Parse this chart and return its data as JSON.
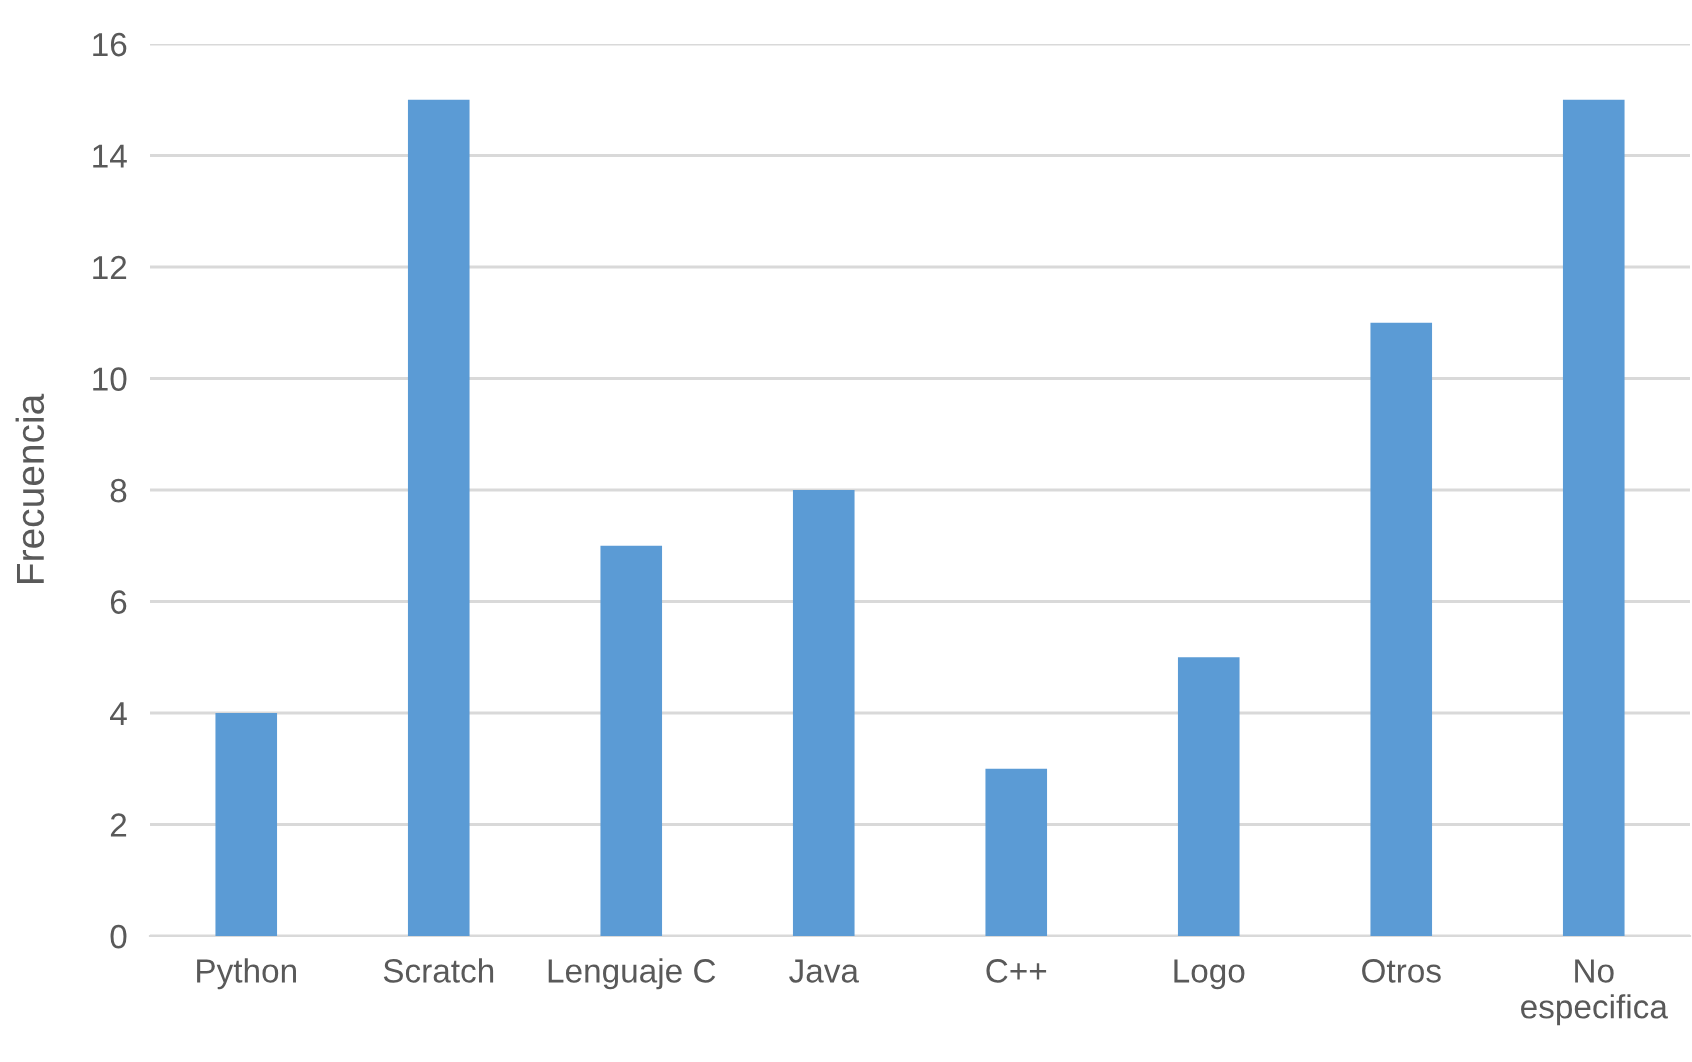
{
  "chart_data": {
    "type": "bar",
    "ylabel": "Frecuencia",
    "categories": [
      "Python",
      "Scratch",
      "Lenguaje C",
      "Java",
      "C++",
      "Logo",
      "Otros",
      "No\nespecifica"
    ],
    "values": [
      4,
      15,
      7,
      8,
      3,
      5,
      11,
      15
    ],
    "color": "#5b9bd5",
    "ylim": [
      0,
      16
    ],
    "yticks": [
      0,
      2,
      4,
      6,
      8,
      10,
      12,
      14,
      16
    ],
    "grid": "y",
    "legend": false
  }
}
